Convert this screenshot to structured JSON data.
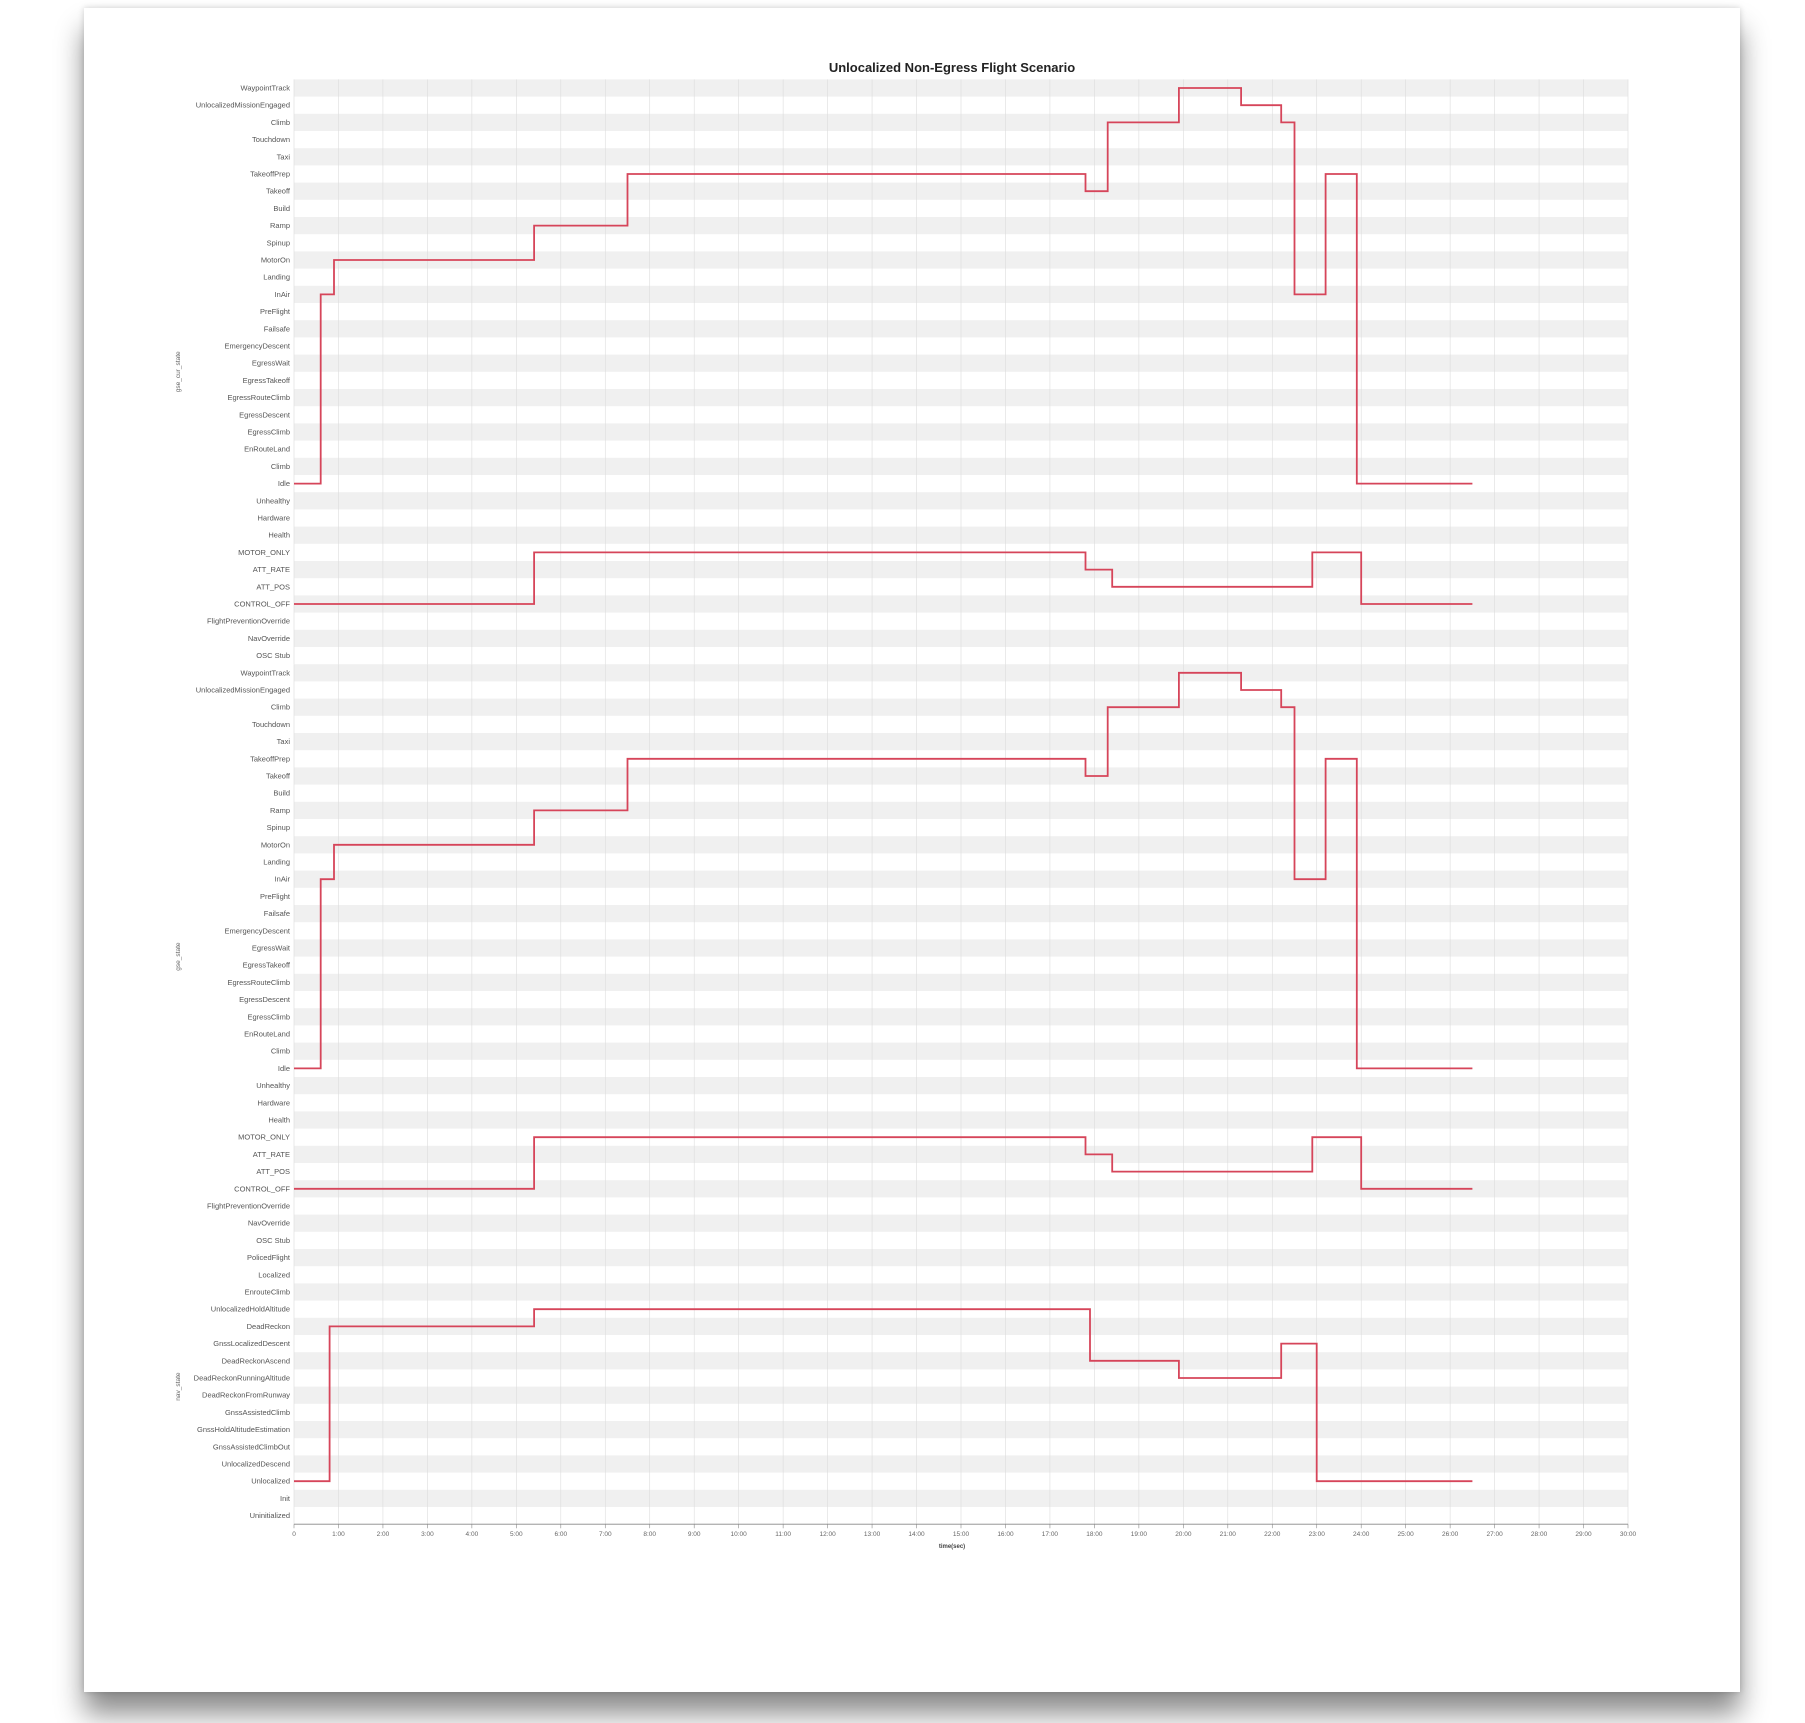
{
  "chart_data": {
    "type": "line",
    "title": "Unlocalized Non-Egress Flight Scenario",
    "xlabel": "time(sec)",
    "x_ticks": [
      "0",
      "1:00",
      "2:00",
      "3:00",
      "4:00",
      "5:00",
      "6:00",
      "7:00",
      "8:00",
      "9:00",
      "10:00",
      "11:00",
      "12:00",
      "13:00",
      "14:00",
      "15:00",
      "16:00",
      "17:00",
      "18:00",
      "19:00",
      "20:00",
      "21:00",
      "22:00",
      "23:00",
      "24:00",
      "25:00",
      "26:00",
      "27:00",
      "28:00",
      "29:00",
      "30:00"
    ],
    "xlim": [
      0,
      30
    ],
    "panels": [
      {
        "ylabel": "gse_cur_state",
        "categories": [
          "WaypointTrack",
          "UnlocalizedMissionEngaged",
          "Climb",
          "Touchdown",
          "Taxi",
          "TakeoffPrep",
          "Takeoff",
          "Build",
          "Ramp",
          "Spinup",
          "MotorOn",
          "Landing",
          "InAir",
          "PreFlight",
          "Failsafe",
          "EmergencyDescent",
          "EgressWait",
          "EgressTakeoff",
          "EgressRouteClimb",
          "EgressDescent",
          "EgressClimb",
          "EnRouteLand",
          "Climb",
          "Idle",
          "Unhealthy",
          "Hardware",
          "Health",
          "MOTOR_ONLY",
          "ATT_RATE",
          "ATT_POS",
          "CONTROL_OFF",
          "FlightPreventionOverride",
          "NavOverride",
          "OSC Stub"
        ],
        "series": [
          {
            "x": [
              0,
              0.6,
              0.6,
              0.9,
              0.9,
              5.4,
              5.4,
              7.5,
              7.5,
              17.8,
              17.8,
              18.3,
              18.3,
              19.9,
              19.9,
              21.3,
              21.3,
              22.2,
              22.2,
              22.5,
              22.5,
              23.2,
              23.2,
              23.9,
              23.9,
              24.2,
              24.2,
              26.5
            ],
            "y": [
              "Idle",
              "Idle",
              "InAir",
              "InAir",
              "MotorOn",
              "MotorOn",
              "Ramp",
              "Ramp",
              "TakeoffPrep",
              "TakeoffPrep",
              "Takeoff",
              "Takeoff",
              "Climb",
              "Climb",
              "WaypointTrack",
              "WaypointTrack",
              "UnlocalizedMissionEngaged",
              "UnlocalizedMissionEngaged",
              "Climb",
              "Climb",
              "InAir",
              "InAir",
              "TakeoffPrep",
              "TakeoffPrep",
              "Idle",
              "Idle",
              "Idle",
              "Idle"
            ]
          },
          {
            "x": [
              0,
              5.4,
              5.4,
              17.8,
              17.8,
              18.4,
              18.4,
              22.9,
              22.9,
              24.0,
              24.0,
              26.5
            ],
            "y": [
              "CONTROL_OFF",
              "CONTROL_OFF",
              "MOTOR_ONLY",
              "MOTOR_ONLY",
              "ATT_RATE",
              "ATT_RATE",
              "ATT_POS",
              "ATT_POS",
              "MOTOR_ONLY",
              "MOTOR_ONLY",
              "CONTROL_OFF",
              "CONTROL_OFF"
            ]
          }
        ]
      },
      {
        "ylabel": "gse_state",
        "categories": [
          "WaypointTrack",
          "UnlocalizedMissionEngaged",
          "Climb",
          "Touchdown",
          "Taxi",
          "TakeoffPrep",
          "Takeoff",
          "Build",
          "Ramp",
          "Spinup",
          "MotorOn",
          "Landing",
          "InAir",
          "PreFlight",
          "Failsafe",
          "EmergencyDescent",
          "EgressWait",
          "EgressTakeoff",
          "EgressRouteClimb",
          "EgressDescent",
          "EgressClimb",
          "EnRouteLand",
          "Climb",
          "Idle",
          "Unhealthy",
          "Hardware",
          "Health",
          "MOTOR_ONLY",
          "ATT_RATE",
          "ATT_POS",
          "CONTROL_OFF",
          "FlightPreventionOverride",
          "NavOverride",
          "OSC Stub"
        ],
        "series": [
          {
            "x": [
              0,
              0.6,
              0.6,
              0.9,
              0.9,
              5.4,
              5.4,
              7.5,
              7.5,
              17.8,
              17.8,
              18.3,
              18.3,
              19.9,
              19.9,
              21.3,
              21.3,
              22.2,
              22.2,
              22.5,
              22.5,
              23.2,
              23.2,
              23.9,
              23.9,
              24.2,
              24.2,
              26.5
            ],
            "y": [
              "Idle",
              "Idle",
              "InAir",
              "InAir",
              "MotorOn",
              "MotorOn",
              "Ramp",
              "Ramp",
              "TakeoffPrep",
              "TakeoffPrep",
              "Takeoff",
              "Takeoff",
              "Climb",
              "Climb",
              "WaypointTrack",
              "WaypointTrack",
              "UnlocalizedMissionEngaged",
              "UnlocalizedMissionEngaged",
              "Climb",
              "Climb",
              "InAir",
              "InAir",
              "TakeoffPrep",
              "TakeoffPrep",
              "Idle",
              "Idle",
              "Idle",
              "Idle"
            ]
          },
          {
            "x": [
              0,
              5.4,
              5.4,
              17.8,
              17.8,
              18.4,
              18.4,
              22.9,
              22.9,
              24.0,
              24.0,
              26.5
            ],
            "y": [
              "CONTROL_OFF",
              "CONTROL_OFF",
              "MOTOR_ONLY",
              "MOTOR_ONLY",
              "ATT_RATE",
              "ATT_RATE",
              "ATT_POS",
              "ATT_POS",
              "MOTOR_ONLY",
              "MOTOR_ONLY",
              "CONTROL_OFF",
              "CONTROL_OFF"
            ]
          }
        ]
      },
      {
        "ylabel": "nav_state",
        "categories": [
          "PolicedFlight",
          "Localized",
          "EnrouteClimb",
          "UnlocalizedHoldAltitude",
          "DeadReckon",
          "GnssLocalizedDescent",
          "DeadReckonAscend",
          "DeadReckonRunningAltitude",
          "DeadReckonFromRunway",
          "GnssAssistedClimb",
          "GnssHoldAltitudeEstimation",
          "GnssAssistedClimbOut",
          "UnlocalizedDescend",
          "Unlocalized",
          "Init",
          "Uninitialized"
        ],
        "series": [
          {
            "x": [
              0,
              0.8,
              0.8,
              5.4,
              5.4,
              17.9,
              17.9,
              19.9,
              19.9,
              22.2,
              22.2,
              23.0,
              23.0,
              24.0,
              24.0,
              26.5
            ],
            "y": [
              "Unlocalized",
              "Unlocalized",
              "DeadReckon",
              "DeadReckon",
              "UnlocalizedHoldAltitude",
              "UnlocalizedHoldAltitude",
              "DeadReckonAscend",
              "DeadReckonAscend",
              "DeadReckonRunningAltitude",
              "DeadReckonRunningAltitude",
              "GnssLocalizedDescent",
              "GnssLocalizedDescent",
              "Unlocalized",
              "Unlocalized",
              "Unlocalized",
              "Unlocalized"
            ]
          }
        ]
      }
    ],
    "grid": true
  },
  "colors": {
    "line": "#d6455a",
    "band": "#f0f0f0",
    "grid": "#dcdcdc"
  }
}
